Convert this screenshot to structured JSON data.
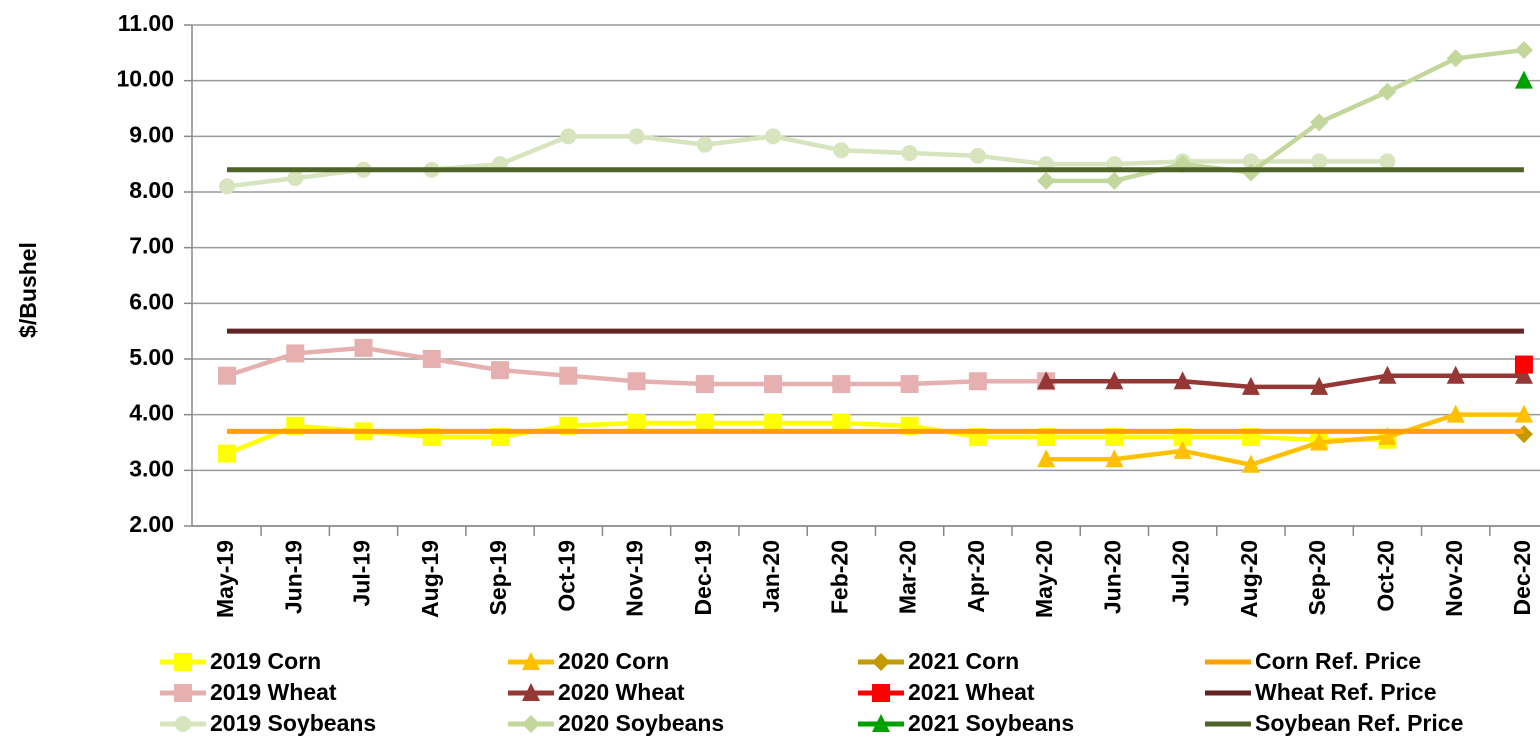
{
  "chart_data": {
    "type": "line",
    "y_label": "$/Bushel",
    "categories": [
      "May-19",
      "Jun-19",
      "Jul-19",
      "Aug-19",
      "Sep-19",
      "Oct-19",
      "Nov-19",
      "Dec-19",
      "Jan-20",
      "Feb-20",
      "Mar-20",
      "Apr-20",
      "May-20",
      "Jun-20",
      "Jul-20",
      "Aug-20",
      "Sep-20",
      "Oct-20",
      "Nov-20",
      "Dec-20"
    ],
    "ylim": [
      2,
      11
    ],
    "yticks": [
      {
        "value": 2,
        "label": "2.00"
      },
      {
        "value": 3,
        "label": "3.00"
      },
      {
        "value": 4,
        "label": "4.00"
      },
      {
        "value": 5,
        "label": "5.00"
      },
      {
        "value": 6,
        "label": "6.00"
      },
      {
        "value": 7,
        "label": "7.00"
      },
      {
        "value": 8,
        "label": "8.00"
      },
      {
        "value": 9,
        "label": "9.00"
      },
      {
        "value": 10,
        "label": "10.00"
      },
      {
        "value": 11,
        "label": "11.00"
      }
    ],
    "grid": true,
    "legend": "bottom",
    "series": [
      {
        "name": "2019 Corn",
        "color": "#ffff00",
        "marker": "square",
        "values": [
          3.3,
          3.8,
          3.7,
          3.6,
          3.6,
          3.8,
          3.85,
          3.85,
          3.85,
          3.85,
          3.8,
          3.6,
          3.6,
          3.6,
          3.6,
          3.6,
          3.55,
          3.55,
          null,
          null
        ]
      },
      {
        "name": "2020 Corn",
        "color": "#ffc000",
        "marker": "triangle",
        "values": [
          null,
          null,
          null,
          null,
          null,
          null,
          null,
          null,
          null,
          null,
          null,
          null,
          3.2,
          3.2,
          3.35,
          3.1,
          3.5,
          3.6,
          4.0,
          4.0
        ]
      },
      {
        "name": "2021 Corn",
        "color": "#c49a00",
        "marker": "diamond",
        "values": [
          null,
          null,
          null,
          null,
          null,
          null,
          null,
          null,
          null,
          null,
          null,
          null,
          null,
          null,
          null,
          null,
          null,
          null,
          null,
          3.65
        ]
      },
      {
        "name": "Corn Ref. Price",
        "color": "#ffa000",
        "marker": "none",
        "values": [
          3.7,
          3.7,
          3.7,
          3.7,
          3.7,
          3.7,
          3.7,
          3.7,
          3.7,
          3.7,
          3.7,
          3.7,
          3.7,
          3.7,
          3.7,
          3.7,
          3.7,
          3.7,
          3.7,
          3.7
        ]
      },
      {
        "name": "2019 Wheat",
        "color": "#e6b0b0",
        "marker": "square",
        "values": [
          4.7,
          5.1,
          5.2,
          5.0,
          4.8,
          4.7,
          4.6,
          4.55,
          4.55,
          4.55,
          4.55,
          4.6,
          4.6,
          null,
          null,
          null,
          null,
          null,
          null,
          null
        ]
      },
      {
        "name": "2020 Wheat",
        "color": "#953735",
        "marker": "triangle",
        "values": [
          null,
          null,
          null,
          null,
          null,
          null,
          null,
          null,
          null,
          null,
          null,
          null,
          4.6,
          4.6,
          4.6,
          4.5,
          4.5,
          4.7,
          4.7,
          4.7
        ]
      },
      {
        "name": "2021 Wheat",
        "color": "#ff0000",
        "marker": "square",
        "values": [
          null,
          null,
          null,
          null,
          null,
          null,
          null,
          null,
          null,
          null,
          null,
          null,
          null,
          null,
          null,
          null,
          null,
          null,
          null,
          4.9
        ]
      },
      {
        "name": "Wheat Ref. Price",
        "color": "#632523",
        "marker": "none",
        "values": [
          5.5,
          5.5,
          5.5,
          5.5,
          5.5,
          5.5,
          5.5,
          5.5,
          5.5,
          5.5,
          5.5,
          5.5,
          5.5,
          5.5,
          5.5,
          5.5,
          5.5,
          5.5,
          5.5,
          5.5
        ]
      },
      {
        "name": "2019 Soybeans",
        "color": "#d7e4bd",
        "marker": "circle",
        "values": [
          8.1,
          8.25,
          8.4,
          8.4,
          8.5,
          9.0,
          9.0,
          8.85,
          9.0,
          8.75,
          8.7,
          8.65,
          8.5,
          8.5,
          8.55,
          8.55,
          8.55,
          8.55,
          null,
          null
        ]
      },
      {
        "name": "2020 Soybeans",
        "color": "#c3d69b",
        "marker": "diamond",
        "values": [
          null,
          null,
          null,
          null,
          null,
          null,
          null,
          null,
          null,
          null,
          null,
          null,
          8.2,
          8.2,
          8.5,
          8.35,
          9.25,
          9.8,
          10.4,
          10.55
        ]
      },
      {
        "name": "2021 Soybeans",
        "color": "#00a000",
        "marker": "triangle",
        "values": [
          null,
          null,
          null,
          null,
          null,
          null,
          null,
          null,
          null,
          null,
          null,
          null,
          null,
          null,
          null,
          null,
          null,
          null,
          null,
          10.0
        ]
      },
      {
        "name": "Soybean Ref. Price",
        "color": "#4f6228",
        "marker": "none",
        "values": [
          8.4,
          8.4,
          8.4,
          8.4,
          8.4,
          8.4,
          8.4,
          8.4,
          8.4,
          8.4,
          8.4,
          8.4,
          8.4,
          8.4,
          8.4,
          8.4,
          8.4,
          8.4,
          8.4,
          8.4
        ]
      }
    ]
  }
}
